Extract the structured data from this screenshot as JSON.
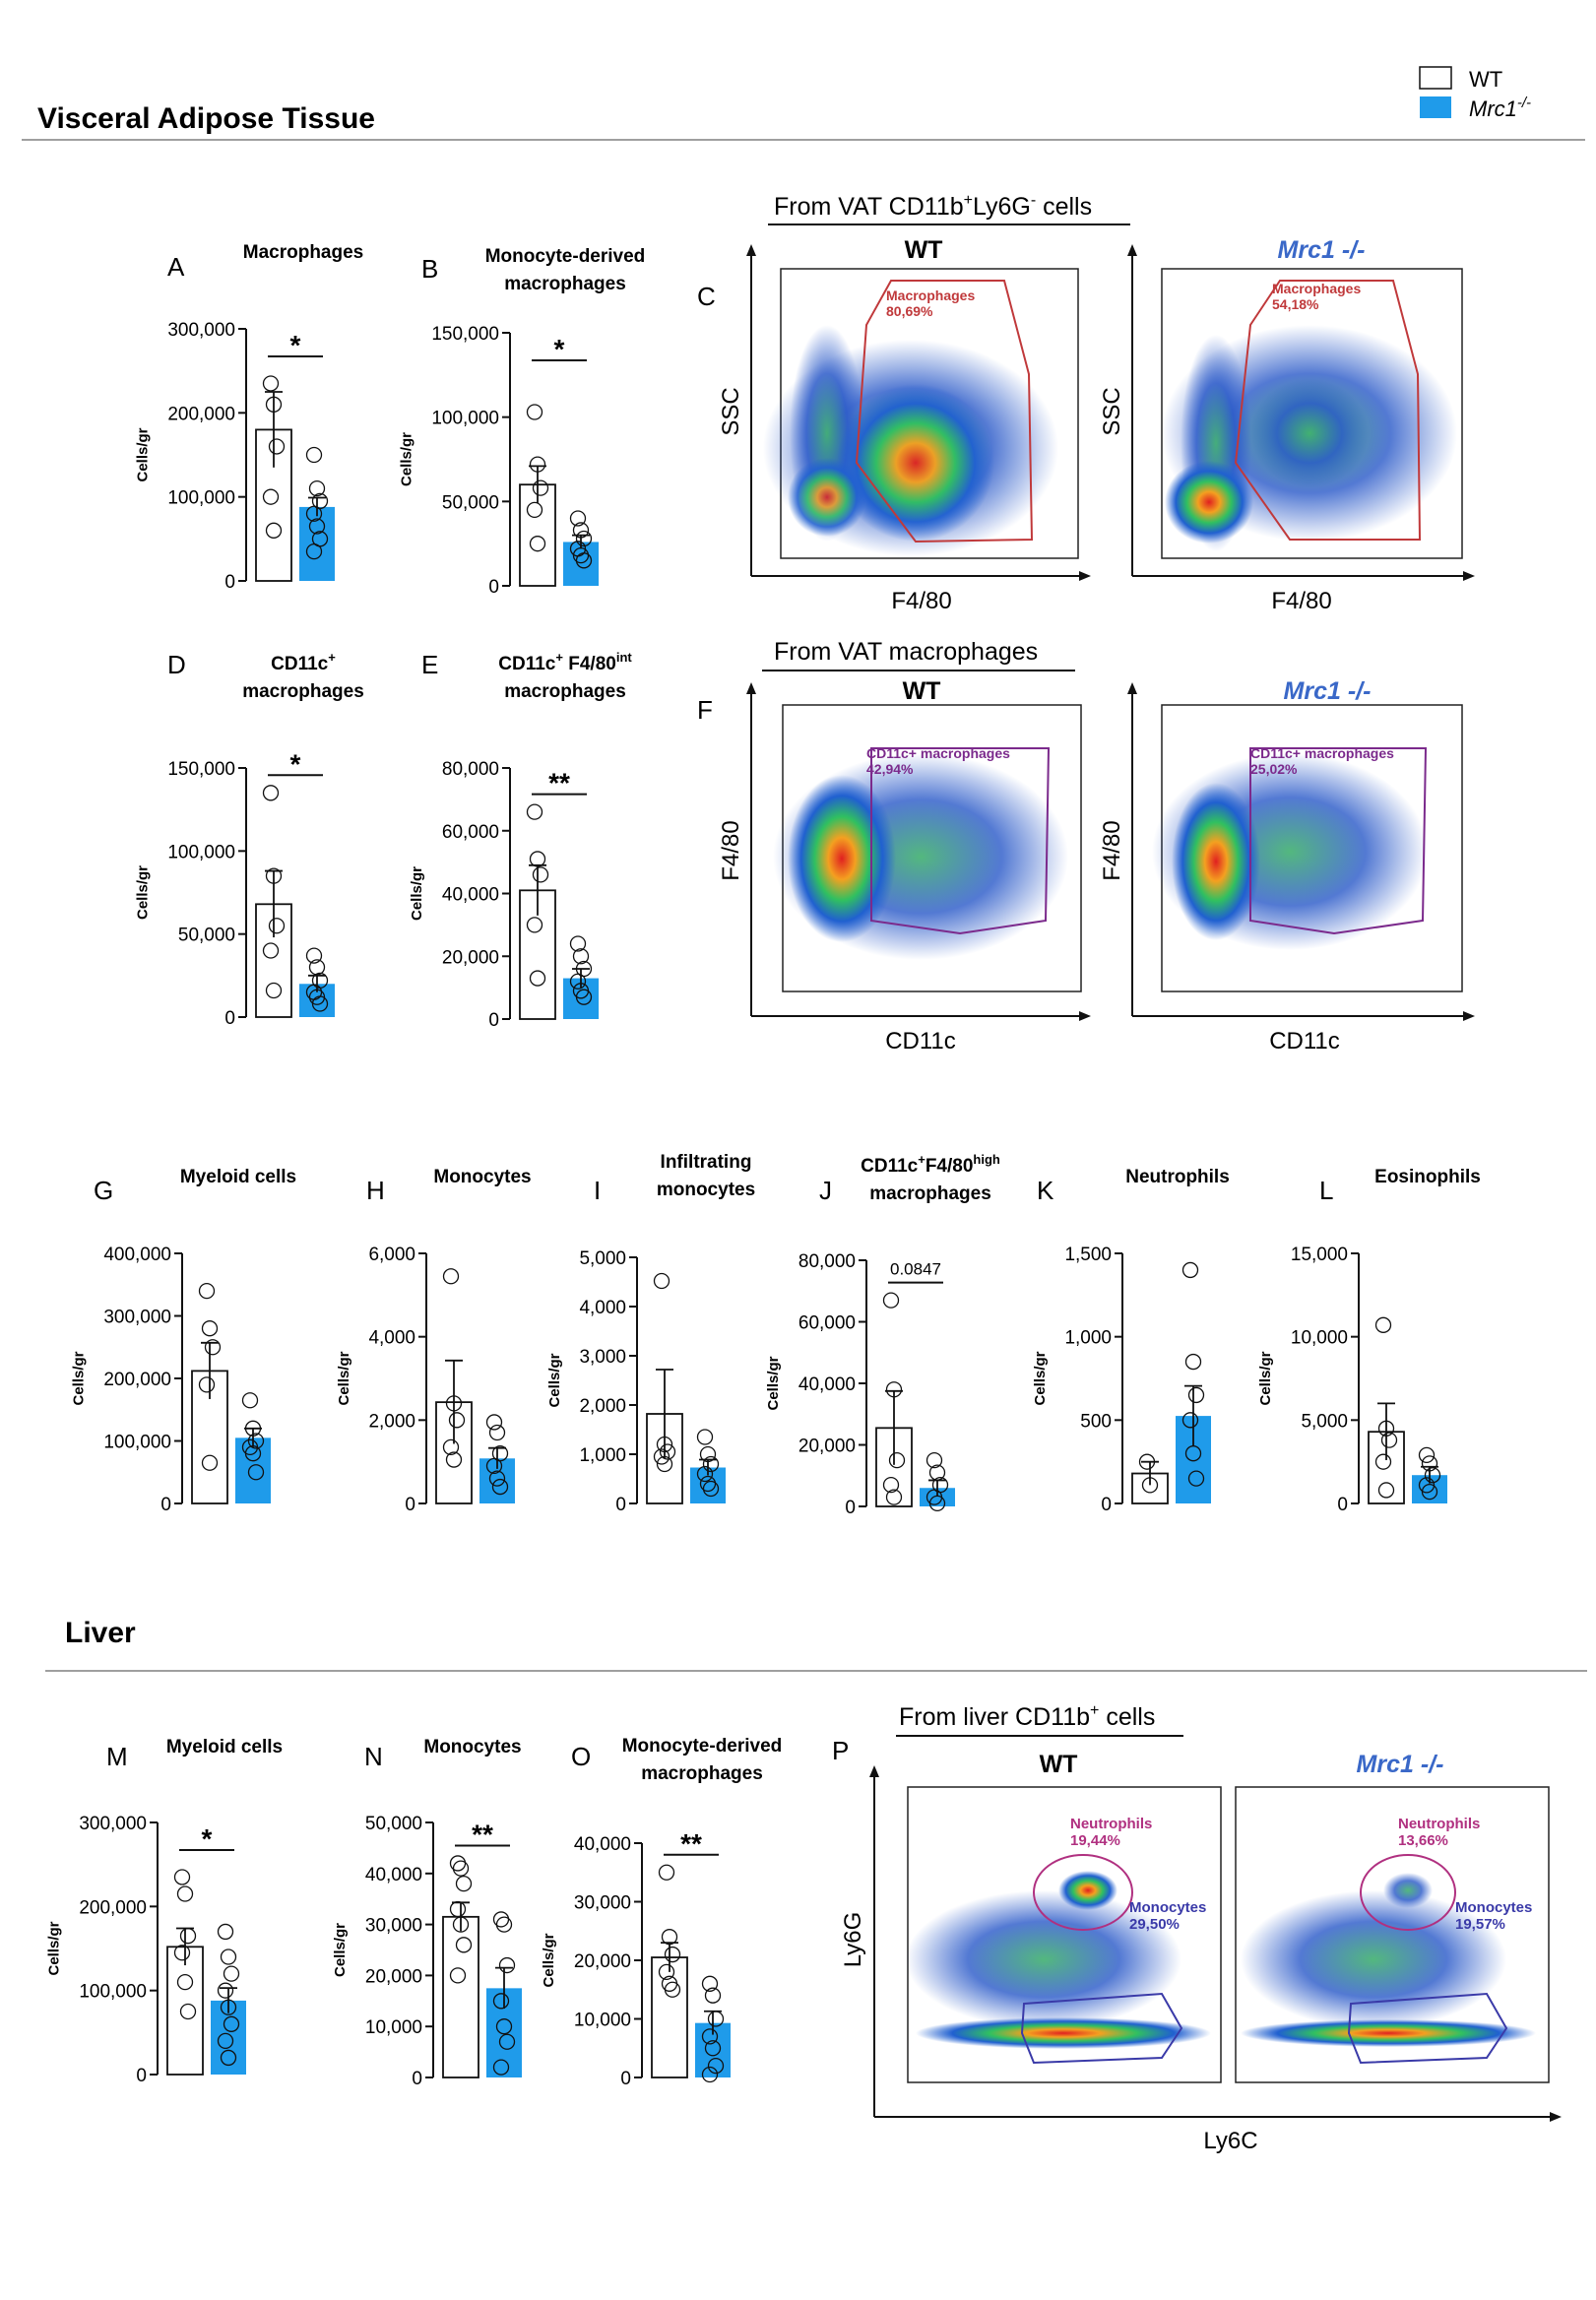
{
  "sections": {
    "vat": "Visceral Adipose Tissue",
    "liver": "Liver"
  },
  "legend": {
    "items": [
      {
        "label": "WT",
        "color": "#ffffff"
      },
      {
        "label": "Mrc1",
        "sup": "-/-",
        "color": "#1f9bea"
      }
    ]
  },
  "colors": {
    "wt_fill": "#ffffff",
    "ko_fill": "#1f9bea",
    "gate_red": "#c0393b",
    "gate_purple": "#7b2a8c",
    "gate_magenta": "#b03080",
    "gate_blue": "#3a3aa8"
  },
  "flow": {
    "C": {
      "letter": "C",
      "header": "From  VAT CD11b",
      "header_sup1": "+",
      "header_mid": "Ly6G",
      "header_sup2": "-",
      "header_end": " cells",
      "plots": [
        {
          "title": "WT",
          "gate": "Macrophages",
          "pct": "80,69%"
        },
        {
          "title": "Mrc1 -/-",
          "gate": "Macrophages",
          "pct": "54,18%"
        }
      ],
      "xlabel": "F4/80",
      "ylabel": "SSC"
    },
    "F": {
      "letter": "F",
      "header": "From  VAT macrophages",
      "plots": [
        {
          "title": "WT",
          "gate": "CD11c+ macrophages",
          "pct": "42,94%"
        },
        {
          "title": "Mrc1 -/-",
          "gate": "CD11c+ macrophages",
          "pct": "25,02%"
        }
      ],
      "xlabel": "CD11c",
      "ylabel": "F4/80"
    },
    "P": {
      "letter": "P",
      "header": "From liver CD11b",
      "header_sup": "+",
      "header_end": " cells",
      "plots": [
        {
          "title": "WT",
          "gate1": "Neutrophils",
          "pct1": "19,44%",
          "gate2": "Monocytes",
          "pct2": "29,50%"
        },
        {
          "title": "Mrc1 -/-",
          "gate1": "Neutrophils",
          "pct1": "13,66%",
          "gate2": "Monocytes",
          "pct2": "19,57%"
        }
      ],
      "xlabel": "Ly6C",
      "ylabel": "Ly6G"
    }
  },
  "chart_data": [
    {
      "id": "A",
      "type": "bar",
      "letter": "A",
      "title": [
        "Macrophages"
      ],
      "ylabel": "Cells/gr",
      "ylim": [
        0,
        300000
      ],
      "yticks": [
        "0",
        "100,000",
        "200,000",
        "300,000"
      ],
      "tickvals": [
        0,
        100000,
        200000,
        300000
      ],
      "series": [
        {
          "name": "WT",
          "mean": 180000,
          "sem": 45000,
          "points": [
            235000,
            210000,
            160000,
            100000,
            60000
          ]
        },
        {
          "name": "Mrc1-/-",
          "mean": 88000,
          "sem": 11000,
          "points": [
            150000,
            110000,
            95000,
            80000,
            65000,
            50000,
            35000
          ]
        }
      ],
      "sig": "*"
    },
    {
      "id": "B",
      "type": "bar",
      "letter": "B",
      "title": [
        "Monocyte-derived",
        "macrophages"
      ],
      "ylabel": "Cells/gr",
      "ylim": [
        0,
        150000
      ],
      "yticks": [
        "0",
        "50,000",
        "100,000",
        "150,000"
      ],
      "tickvals": [
        0,
        50000,
        100000,
        150000
      ],
      "series": [
        {
          "name": "WT",
          "mean": 60000,
          "sem": 11000,
          "points": [
            103000,
            72000,
            58000,
            45000,
            25000
          ]
        },
        {
          "name": "Mrc1-/-",
          "mean": 26000,
          "sem": 4000,
          "points": [
            40000,
            33000,
            28000,
            22000,
            18000,
            15000
          ]
        }
      ],
      "sig": "*"
    },
    {
      "id": "D",
      "type": "bar",
      "letter": "D",
      "title": [
        "CD11c",
        "macrophages"
      ],
      "title_sup": "+",
      "ylabel": "Cells/gr",
      "ylim": [
        0,
        150000
      ],
      "yticks": [
        "0",
        "50,000",
        "100,000",
        "150,000"
      ],
      "tickvals": [
        0,
        50000,
        100000,
        150000
      ],
      "series": [
        {
          "name": "WT",
          "mean": 68000,
          "sem": 20000,
          "points": [
            135000,
            85000,
            55000,
            40000,
            16000
          ]
        },
        {
          "name": "Mrc1-/-",
          "mean": 20000,
          "sem": 5000,
          "points": [
            37000,
            30000,
            22000,
            15000,
            12000,
            8000
          ]
        }
      ],
      "sig": "*"
    },
    {
      "id": "E",
      "type": "bar",
      "letter": "E",
      "title": [
        "CD11c",
        "macrophages"
      ],
      "title_sup": "+",
      "title_mid": " F4/80",
      "title_sup2": "int",
      "ylabel": "Cells/gr",
      "ylim": [
        0,
        80000
      ],
      "yticks": [
        "0",
        "20,000",
        "40,000",
        "60,000",
        "80,000"
      ],
      "tickvals": [
        0,
        20000,
        40000,
        60000,
        80000
      ],
      "series": [
        {
          "name": "WT",
          "mean": 41000,
          "sem": 8000,
          "points": [
            66000,
            51000,
            46000,
            30000,
            13000
          ]
        },
        {
          "name": "Mrc1-/-",
          "mean": 13000,
          "sem": 3000,
          "points": [
            24000,
            20000,
            16000,
            12000,
            9000,
            7000
          ]
        }
      ],
      "sig": "**"
    },
    {
      "id": "G",
      "type": "bar",
      "letter": "G",
      "title": [
        "Myeloid cells"
      ],
      "ylabel": "Cells/gr",
      "ylim": [
        0,
        400000
      ],
      "yticks": [
        "0",
        "100,000",
        "200,000",
        "300,000",
        "400,000"
      ],
      "tickvals": [
        0,
        100000,
        200000,
        300000,
        400000
      ],
      "series": [
        {
          "name": "WT",
          "mean": 212000,
          "sem": 45000,
          "points": [
            340000,
            280000,
            250000,
            190000,
            65000
          ]
        },
        {
          "name": "Mrc1-/-",
          "mean": 105000,
          "sem": 15000,
          "points": [
            165000,
            120000,
            100000,
            90000,
            80000,
            50000
          ]
        }
      ],
      "sig": ""
    },
    {
      "id": "H",
      "type": "bar",
      "letter": "H",
      "title": [
        "Monocytes"
      ],
      "ylabel": "Cells/gr",
      "ylim": [
        0,
        6000
      ],
      "yticks": [
        "0",
        "2,000",
        "4,000",
        "6,000"
      ],
      "tickvals": [
        0,
        2000,
        4000,
        6000
      ],
      "series": [
        {
          "name": "WT",
          "mean": 2430,
          "sem": 1000,
          "points": [
            5450,
            2400,
            2000,
            1350,
            1050
          ]
        },
        {
          "name": "Mrc1-/-",
          "mean": 1080,
          "sem": 250,
          "points": [
            1950,
            1700,
            1200,
            900,
            600,
            400
          ]
        }
      ],
      "sig": ""
    },
    {
      "id": "I",
      "type": "bar",
      "letter": "I",
      "title": [
        "Infiltrating",
        "monocytes"
      ],
      "ylabel": "Cells/gr",
      "ylim": [
        0,
        5000
      ],
      "yticks": [
        "0",
        "1,000",
        "2,000",
        "3,000",
        "4,000",
        "5,000"
      ],
      "tickvals": [
        0,
        1000,
        2000,
        3000,
        4000,
        5000
      ],
      "series": [
        {
          "name": "WT",
          "mean": 1820,
          "sem": 900,
          "points": [
            4520,
            1200,
            1050,
            950,
            800
          ]
        },
        {
          "name": "Mrc1-/-",
          "mean": 730,
          "sem": 160,
          "points": [
            1350,
            1000,
            800,
            600,
            400,
            300
          ]
        }
      ],
      "sig": ""
    },
    {
      "id": "J",
      "type": "bar",
      "letter": "J",
      "title": [
        "CD11c",
        "macrophages"
      ],
      "title_sup": "+",
      "title_mid": "F4/80",
      "title_sup2": "high",
      "ylabel": "Cells/gr",
      "ylim": [
        0,
        80000
      ],
      "yticks": [
        "0",
        "20,000",
        "40,000",
        "60,000",
        "80,000"
      ],
      "tickvals": [
        0,
        20000,
        40000,
        60000,
        80000
      ],
      "series": [
        {
          "name": "WT",
          "mean": 25500,
          "sem": 12000,
          "points": [
            67000,
            38000,
            15000,
            7000,
            3000
          ]
        },
        {
          "name": "Mrc1-/-",
          "mean": 6000,
          "sem": 2500,
          "points": [
            15000,
            11000,
            7000,
            3000,
            1000
          ]
        }
      ],
      "sig": "0.0847"
    },
    {
      "id": "K",
      "type": "bar",
      "letter": "K",
      "title": [
        "Neutrophils"
      ],
      "ylabel": "Cells/gr",
      "ylim": [
        0,
        1500
      ],
      "yticks": [
        "0",
        "500",
        "1,000",
        "1,500"
      ],
      "tickvals": [
        0,
        500,
        1000,
        1500
      ],
      "series": [
        {
          "name": "WT",
          "mean": 180,
          "sem": 70,
          "points": [
            250,
            110
          ]
        },
        {
          "name": "Mrc1-/-",
          "mean": 525,
          "sem": 180,
          "points": [
            1400,
            850,
            650,
            500,
            300,
            150
          ]
        }
      ],
      "sig": ""
    },
    {
      "id": "L",
      "type": "bar",
      "letter": "L",
      "title": [
        "Eosinophils"
      ],
      "ylabel": "Cells/gr",
      "ylim": [
        0,
        15000
      ],
      "yticks": [
        "0",
        "5,000",
        "10,000",
        "15,000"
      ],
      "tickvals": [
        0,
        5000,
        10000,
        15000
      ],
      "series": [
        {
          "name": "WT",
          "mean": 4300,
          "sem": 1700,
          "points": [
            10700,
            4500,
            3800,
            2500,
            800
          ]
        },
        {
          "name": "Mrc1-/-",
          "mean": 1700,
          "sem": 500,
          "points": [
            2900,
            2400,
            1700,
            1100,
            700
          ]
        }
      ],
      "sig": ""
    },
    {
      "id": "M",
      "type": "bar",
      "letter": "M",
      "title": [
        "Myeloid cells"
      ],
      "ylabel": "Cells/gr",
      "ylim": [
        0,
        300000
      ],
      "yticks": [
        "0",
        "100,000",
        "200,000",
        "300,000"
      ],
      "tickvals": [
        0,
        100000,
        200000,
        300000
      ],
      "series": [
        {
          "name": "WT",
          "mean": 152000,
          "sem": 22000,
          "points": [
            235000,
            215000,
            165000,
            145000,
            110000,
            75000
          ]
        },
        {
          "name": "Mrc1-/-",
          "mean": 88000,
          "sem": 15000,
          "points": [
            170000,
            140000,
            120000,
            100000,
            80000,
            60000,
            40000,
            20000
          ]
        }
      ],
      "sig": "*"
    },
    {
      "id": "N",
      "type": "bar",
      "letter": "N",
      "title": [
        "Monocytes"
      ],
      "ylabel": "Cells/gr",
      "ylim": [
        0,
        50000
      ],
      "yticks": [
        "0",
        "10,000",
        "20,000",
        "30,000",
        "40,000",
        "50,000"
      ],
      "tickvals": [
        0,
        10000,
        20000,
        30000,
        40000,
        50000
      ],
      "series": [
        {
          "name": "WT",
          "mean": 31500,
          "sem": 2800,
          "points": [
            42000,
            41000,
            38000,
            33000,
            30000,
            26000,
            20000
          ]
        },
        {
          "name": "Mrc1-/-",
          "mean": 17500,
          "sem": 4000,
          "points": [
            31000,
            30000,
            22000,
            15000,
            10000,
            7000,
            2000
          ]
        }
      ],
      "sig": "**"
    },
    {
      "id": "O",
      "type": "bar",
      "letter": "O",
      "title": [
        "Monocyte-derived",
        "macrophages"
      ],
      "ylabel": "Cells/gr",
      "ylim": [
        0,
        40000
      ],
      "yticks": [
        "0",
        "10,000",
        "20,000",
        "30,000",
        "40,000"
      ],
      "tickvals": [
        0,
        10000,
        20000,
        30000,
        40000
      ],
      "series": [
        {
          "name": "WT",
          "mean": 20500,
          "sem": 2500,
          "points": [
            35000,
            24000,
            21000,
            18000,
            16000,
            15000
          ]
        },
        {
          "name": "Mrc1-/-",
          "mean": 9300,
          "sem": 2000,
          "points": [
            16000,
            14000,
            10000,
            7000,
            5000,
            2000,
            500
          ]
        }
      ],
      "sig": "**"
    }
  ]
}
